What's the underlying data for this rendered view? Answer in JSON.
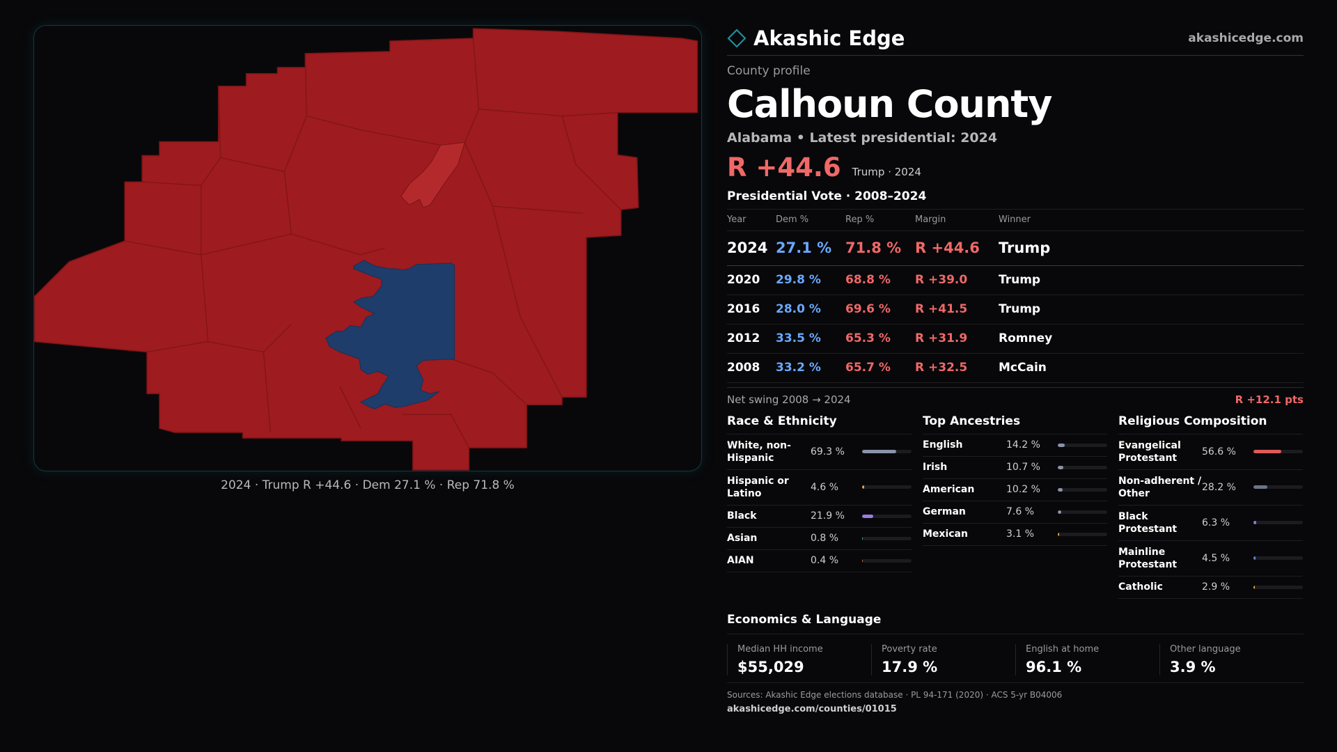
{
  "brand": {
    "name": "Akashic Edge",
    "url": "akashicedge.com"
  },
  "map": {
    "caption": "2024 · Trump R +44.6 · Dem 27.1 % · Rep 71.8 %",
    "colors": {
      "republican": "#9e1b1f",
      "republican_light": "#b42a2c",
      "democrat": "#1f3d6b",
      "border": "#7a1416"
    }
  },
  "profile": {
    "eyebrow": "County profile",
    "title": "Calhoun County",
    "subtitle": "Alabama • Latest presidential: 2024",
    "margin": "R +44.6",
    "margin_sub": "Trump · 2024"
  },
  "vote": {
    "title": "Presidential Vote · 2008–2024",
    "headers": {
      "year": "Year",
      "dem": "Dem %",
      "rep": "Rep %",
      "margin": "Margin",
      "winner": "Winner"
    },
    "rows": [
      {
        "year": "2024",
        "dem": "27.1 %",
        "rep": "71.8 %",
        "margin": "R +44.6",
        "winner": "Trump"
      },
      {
        "year": "2020",
        "dem": "29.8 %",
        "rep": "68.8 %",
        "margin": "R +39.0",
        "winner": "Trump"
      },
      {
        "year": "2016",
        "dem": "28.0 %",
        "rep": "69.6 %",
        "margin": "R +41.5",
        "winner": "Trump"
      },
      {
        "year": "2012",
        "dem": "33.5 %",
        "rep": "65.3 %",
        "margin": "R +31.9",
        "winner": "Romney"
      },
      {
        "year": "2008",
        "dem": "33.2 %",
        "rep": "65.7 %",
        "margin": "R +32.5",
        "winner": "McCain"
      }
    ],
    "swing_label": "Net swing 2008 → 2024",
    "swing_value": "R +12.1 pts",
    "colors": {
      "dem": "#6aa8ff",
      "rep": "#f06868"
    }
  },
  "race": {
    "title": "Race & Ethnicity",
    "rows": [
      {
        "label": "White, non-Hispanic",
        "value": "69.3 %",
        "pct": 69.3,
        "color": "#8a93a8"
      },
      {
        "label": "Hispanic or Latino",
        "value": "4.6 %",
        "pct": 4.6,
        "color": "#e8a33c"
      },
      {
        "label": "Black",
        "value": "21.9 %",
        "pct": 21.9,
        "color": "#9b7be0"
      },
      {
        "label": "Asian",
        "value": "0.8 %",
        "pct": 0.8,
        "color": "#4fb3a9"
      },
      {
        "label": "AIAN",
        "value": "0.4 %",
        "pct": 0.4,
        "color": "#d0705a"
      }
    ]
  },
  "ancestry": {
    "title": "Top Ancestries",
    "rows": [
      {
        "label": "English",
        "value": "14.2 %",
        "pct": 14.2,
        "color": "#8a93a8"
      },
      {
        "label": "Irish",
        "value": "10.7 %",
        "pct": 10.7,
        "color": "#8a93a8"
      },
      {
        "label": "American",
        "value": "10.2 %",
        "pct": 10.2,
        "color": "#8a93a8"
      },
      {
        "label": "German",
        "value": "7.6 %",
        "pct": 7.6,
        "color": "#8a93a8"
      },
      {
        "label": "Mexican",
        "value": "3.1 %",
        "pct": 3.1,
        "color": "#e8a33c"
      }
    ]
  },
  "religion": {
    "title": "Religious Composition",
    "rows": [
      {
        "label": "Evangelical Protestant",
        "value": "56.6 %",
        "pct": 56.6,
        "color": "#e05a5a"
      },
      {
        "label": "Non-adherent / Other",
        "value": "28.2 %",
        "pct": 28.2,
        "color": "#6b7488"
      },
      {
        "label": "Black Protestant",
        "value": "6.3 %",
        "pct": 6.3,
        "color": "#7f7fe0"
      },
      {
        "label": "Mainline Protestant",
        "value": "4.5 %",
        "pct": 4.5,
        "color": "#5a8ae0"
      },
      {
        "label": "Catholic",
        "value": "2.9 %",
        "pct": 2.9,
        "color": "#e8a33c"
      }
    ]
  },
  "economics": {
    "title": "Economics & Language",
    "cells": [
      {
        "label": "Median HH income",
        "value": "$55,029"
      },
      {
        "label": "Poverty rate",
        "value": "17.9 %"
      },
      {
        "label": "English at home",
        "value": "96.1 %"
      },
      {
        "label": "Other language",
        "value": "3.9 %"
      }
    ]
  },
  "footer": {
    "sources": "Sources: Akashic Edge elections database · PL 94-171 (2020) · ACS 5-yr B04006",
    "url": "akashicedge.com/counties/01015"
  }
}
